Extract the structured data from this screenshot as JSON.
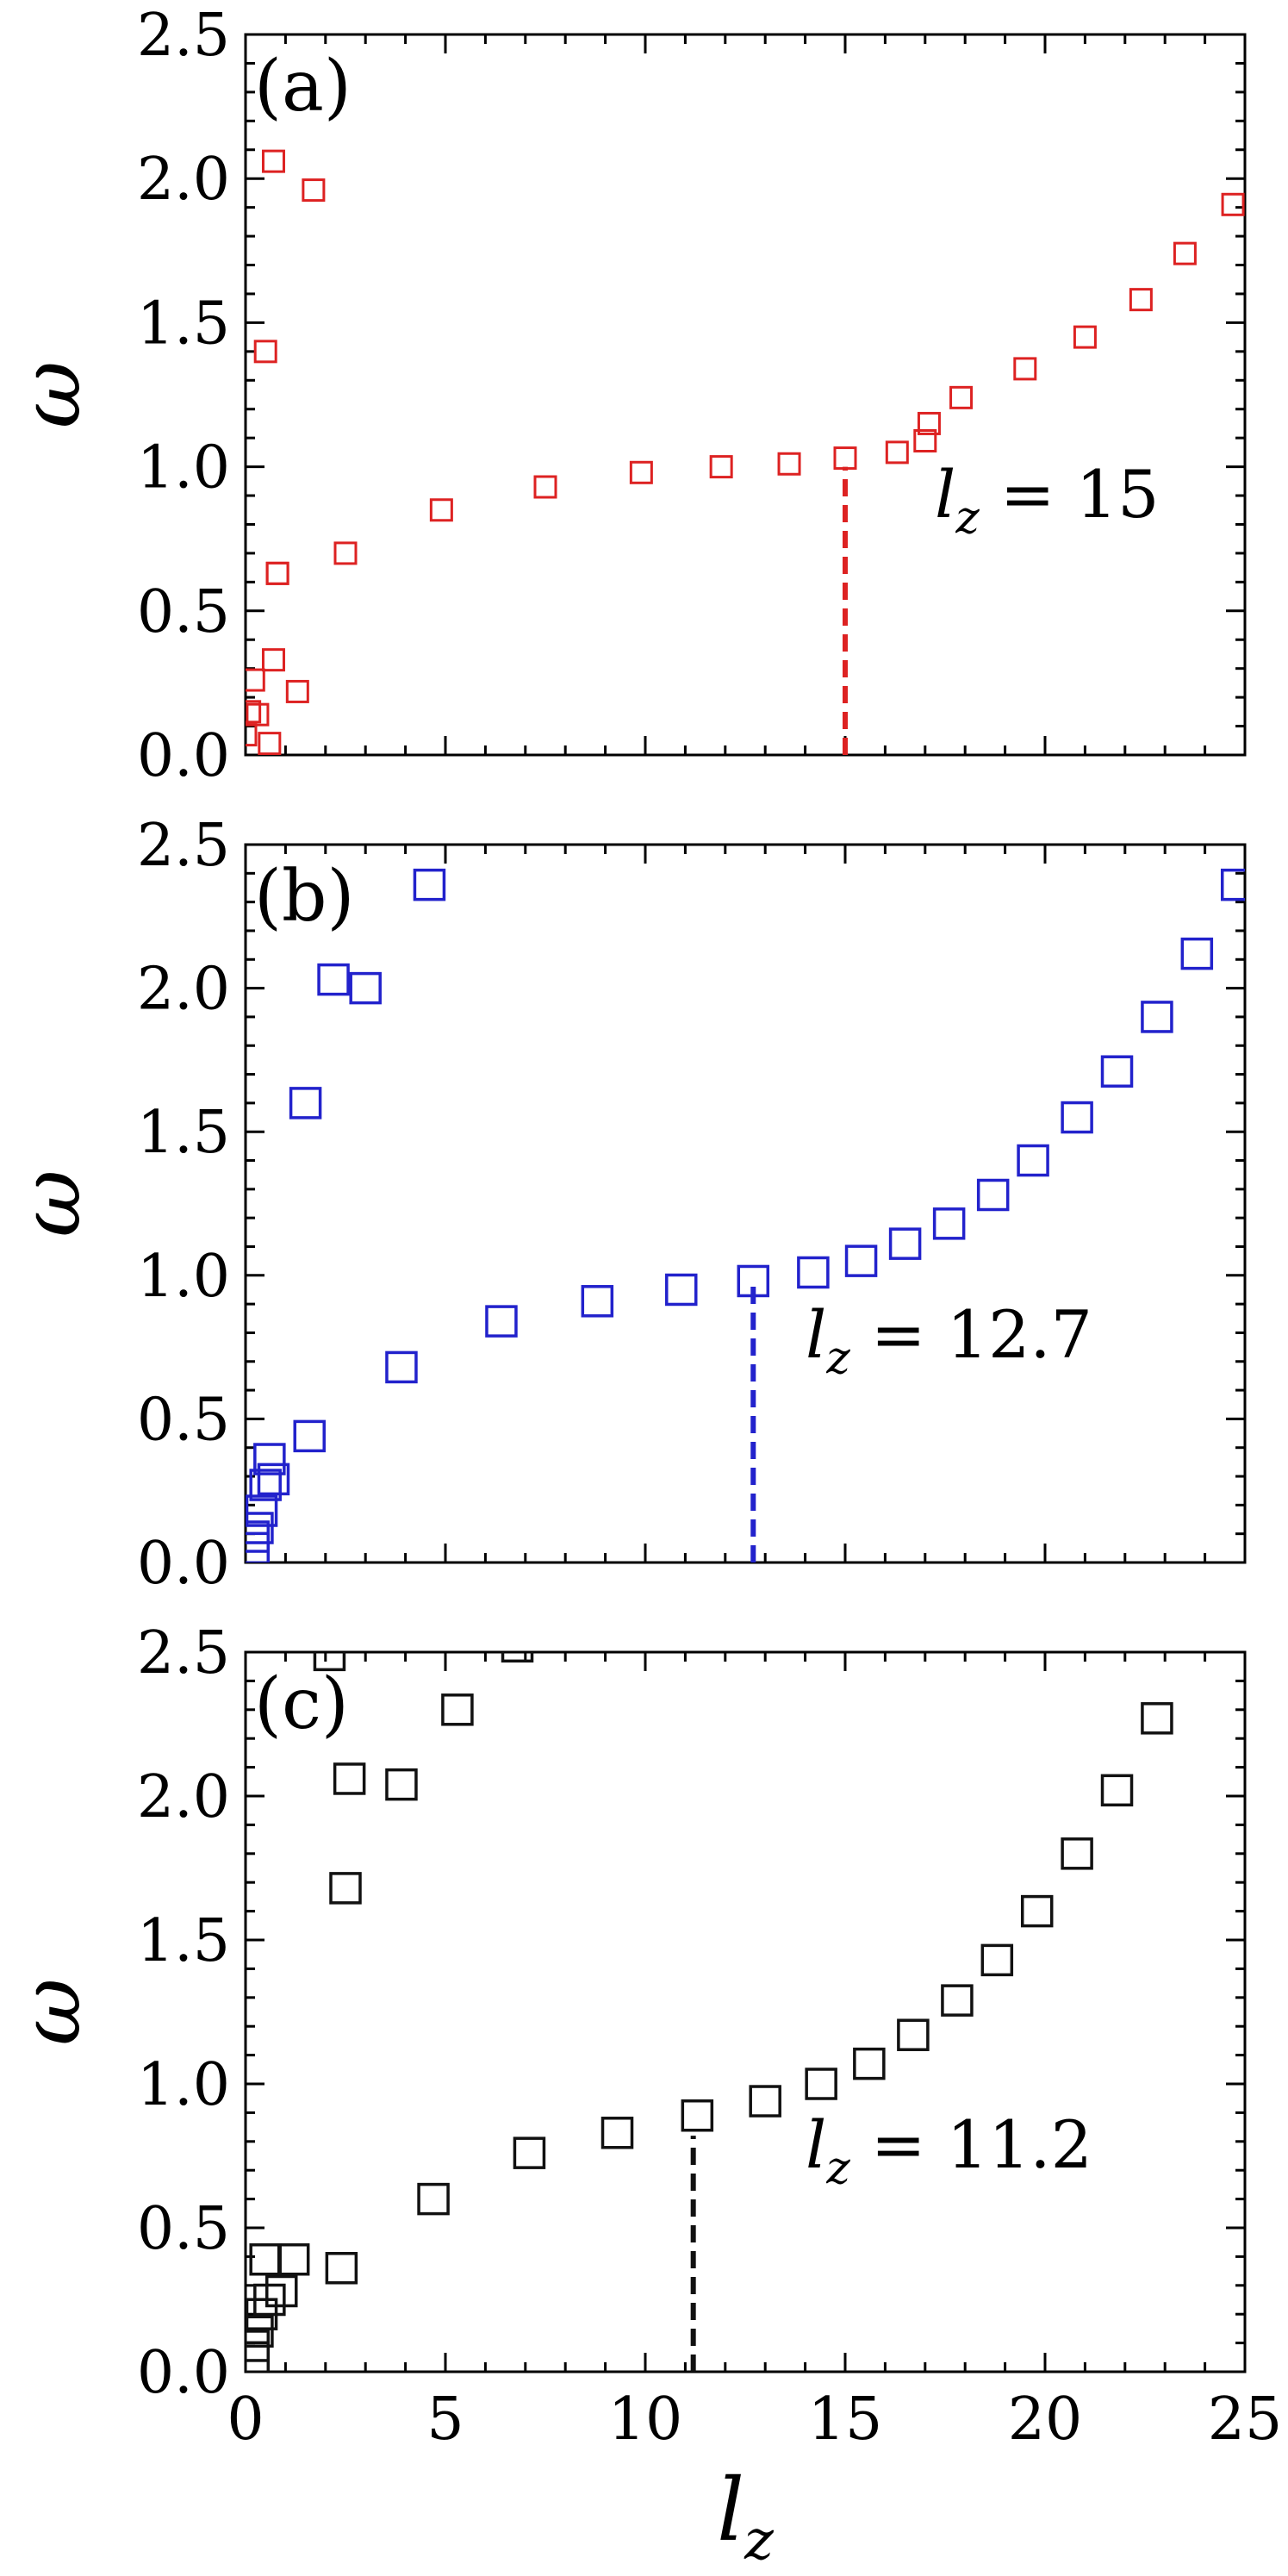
{
  "chart_data": [
    {
      "type": "scatter",
      "panel_label": "(a)",
      "ylabel": "ω",
      "xlabel": "",
      "xlim": [
        0,
        25
      ],
      "ylim": [
        0,
        2.5
      ],
      "marker_color": "#dd2222",
      "marker_size": "small",
      "annotation": "l",
      "annotation_sub": "z",
      "annotation_rest": " = 15",
      "vline": {
        "x": 15,
        "y_top": 1.0,
        "color": "#dd2222"
      },
      "x_ticks": [
        0,
        5,
        10,
        15,
        20,
        25
      ],
      "y_ticks": [
        "0.0",
        "0.5",
        "1.0",
        "1.5",
        "2.0",
        "2.5"
      ],
      "show_x_tick_labels": false,
      "series": [
        {
          "x": [
            0.0,
            0.1,
            0.2,
            0.3,
            0.6,
            0.7,
            1.3,
            0.8,
            0.8,
            2.5,
            4.9,
            7.5,
            9.9,
            11.9,
            13.6,
            15.0,
            16.3,
            17.0,
            17.1,
            17.9,
            19.5,
            21.0,
            22.4,
            23.5,
            24.7,
            0.5,
            0.7,
            1.7
          ],
          "y": [
            0.07,
            0.15,
            0.26,
            0.14,
            0.04,
            0.33,
            0.22,
            0.63,
            0.63,
            0.7,
            0.85,
            0.93,
            0.98,
            1.0,
            1.01,
            1.03,
            1.05,
            1.09,
            1.15,
            1.24,
            1.34,
            1.45,
            1.58,
            1.74,
            1.91,
            1.4,
            2.06,
            1.96
          ]
        }
      ]
    },
    {
      "type": "scatter",
      "panel_label": "(b)",
      "ylabel": "ω",
      "xlabel": "",
      "xlim": [
        0,
        25
      ],
      "ylim": [
        0,
        2.5
      ],
      "marker_color": "#2222cc",
      "marker_size": "large",
      "annotation": "l",
      "annotation_sub": "z",
      "annotation_rest": " = 12.7",
      "vline": {
        "x": 12.7,
        "y_top": 0.97,
        "color": "#2222cc"
      },
      "x_ticks": [
        0,
        5,
        10,
        15,
        20,
        25
      ],
      "y_ticks": [
        "0.0",
        "0.5",
        "1.0",
        "1.5",
        "2.0",
        "2.5"
      ],
      "show_x_tick_labels": false,
      "series": [
        {
          "x": [
            0.2,
            0.2,
            0.3,
            0.4,
            0.5,
            0.7,
            0.6,
            1.6,
            3.9,
            6.4,
            8.8,
            10.9,
            12.7,
            14.2,
            15.4,
            16.5,
            17.6,
            18.7,
            19.7,
            20.8,
            21.8,
            22.8,
            23.8,
            24.8,
            1.5,
            2.2,
            3.0,
            4.6
          ],
          "y": [
            0.05,
            0.09,
            0.12,
            0.18,
            0.27,
            0.29,
            0.36,
            0.44,
            0.68,
            0.84,
            0.91,
            0.95,
            0.98,
            1.01,
            1.05,
            1.11,
            1.18,
            1.28,
            1.4,
            1.55,
            1.71,
            1.9,
            2.12,
            2.36,
            1.6,
            2.03,
            2.0,
            2.36
          ]
        }
      ]
    },
    {
      "type": "scatter",
      "panel_label": "(c)",
      "ylabel": "ω",
      "xlabel": "l",
      "xlabel_sub": "z",
      "xlim": [
        0,
        25
      ],
      "ylim": [
        0,
        2.5
      ],
      "marker_color": "#111111",
      "marker_size": "large",
      "annotation": "l",
      "annotation_sub": "z",
      "annotation_rest": " = 11.2",
      "vline": {
        "x": 11.2,
        "y_top": 0.82,
        "color": "#111111"
      },
      "x_ticks": [
        "0",
        "5",
        "10",
        "15",
        "20",
        "25"
      ],
      "y_ticks": [
        "0.0",
        "0.5",
        "1.0",
        "1.5",
        "2.0",
        "2.5"
      ],
      "show_x_tick_labels": true,
      "series": [
        {
          "x": [
            0.2,
            0.2,
            0.3,
            0.4,
            0.6,
            0.9,
            1.2,
            0.5,
            2.4,
            4.7,
            7.1,
            9.3,
            11.3,
            13.0,
            14.4,
            15.6,
            16.7,
            17.8,
            18.8,
            19.8,
            20.8,
            21.8,
            22.8,
            2.5,
            2.6,
            3.9,
            5.3,
            2.1,
            6.8
          ],
          "y": [
            0.05,
            0.09,
            0.14,
            0.2,
            0.25,
            0.28,
            0.39,
            0.39,
            0.36,
            0.6,
            0.76,
            0.83,
            0.89,
            0.94,
            1.0,
            1.07,
            1.17,
            1.29,
            1.43,
            1.6,
            1.8,
            2.02,
            2.27,
            1.68,
            2.06,
            2.04,
            2.3,
            2.49,
            2.52
          ]
        }
      ]
    }
  ]
}
